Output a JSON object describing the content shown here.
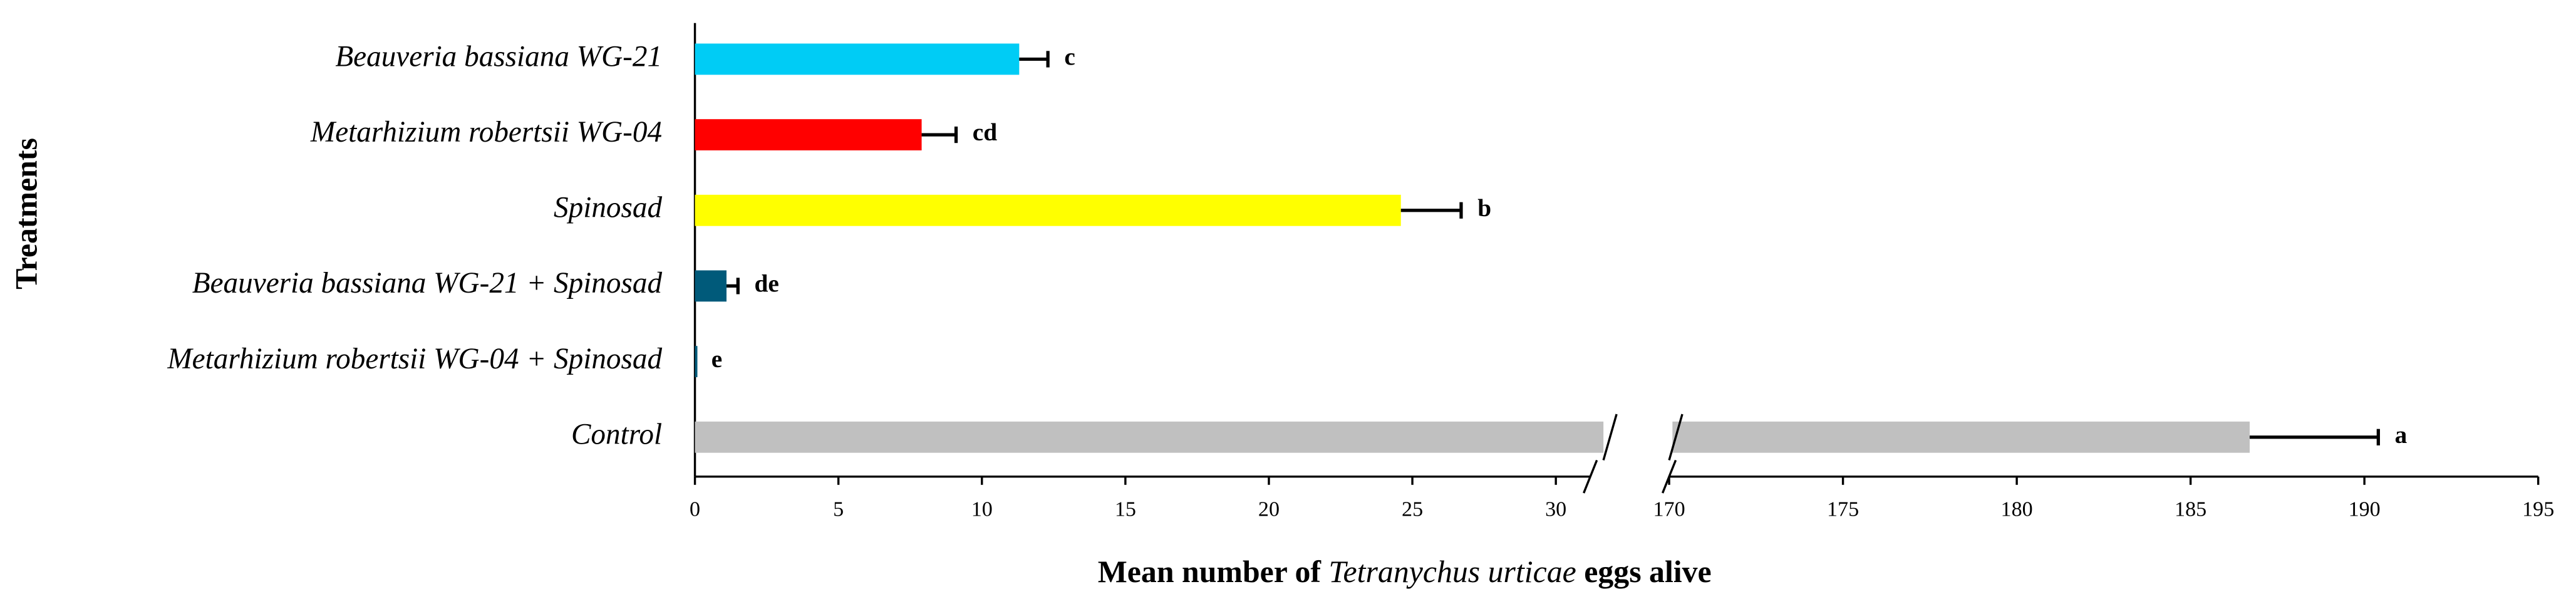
{
  "chart_data": {
    "type": "bar",
    "orientation": "horizontal",
    "y_label": "Treatments",
    "x_label": [
      "Mean number of ",
      "Tetranychus urticae",
      " eggs alive"
    ],
    "categories": [
      "Beauveria bassiana WG-21",
      "Metarhizium robertsii WG-04",
      "Spinosad",
      "Beauveria bassiana WG-21 + Spinosad",
      "Metarhizium robertsii WG-04 + Spinosad",
      "Control"
    ],
    "series": [
      {
        "values": [
          11.3,
          7.9,
          24.6,
          1.1,
          0,
          186.7
        ],
        "errors": [
          1.0,
          1.2,
          2.1,
          0.4,
          0,
          3.7
        ],
        "letters": [
          "c",
          "cd",
          "b",
          "de",
          "e",
          "a"
        ],
        "colors": [
          "#00ccf5",
          "#ff0000",
          "#ffff00",
          "#005a7a",
          "#005a7a",
          "#c0c0c0"
        ]
      }
    ],
    "x_segments": [
      {
        "xlim": [
          0,
          31.2
        ],
        "xticks": [
          0,
          5,
          10,
          15,
          20,
          25,
          30
        ]
      },
      {
        "xlim": [
          170,
          195
        ],
        "xticks": [
          170,
          175,
          180,
          185,
          190,
          195
        ]
      }
    ]
  }
}
